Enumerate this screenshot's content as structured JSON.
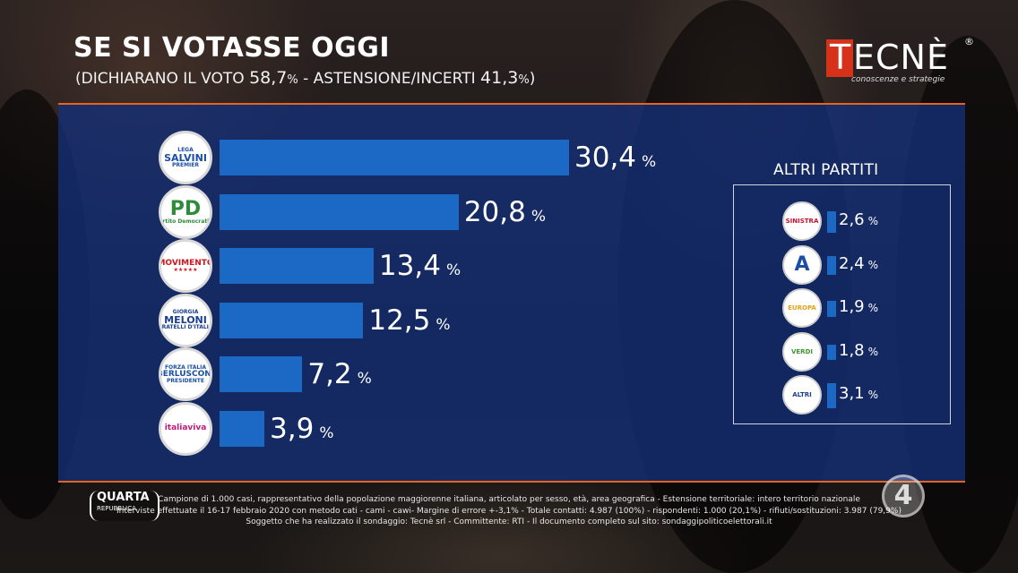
{
  "header": {
    "title": "SE SI VOTASSE OGGI",
    "subtitle_prefix": "(DICHIARANO IL VOTO ",
    "subtitle_voto": "58,7",
    "subtitle_mid": " - ASTENSIONE/INCERTI ",
    "subtitle_astensione": "41,3",
    "subtitle_suffix": ")",
    "pct": "%"
  },
  "brand": {
    "logo_letters": [
      "T",
      "ECNÈ"
    ],
    "registered": "®",
    "tagline": "conoscenze e strategie",
    "accent": "#d6311a"
  },
  "chart_data": {
    "type": "bar",
    "orientation": "horizontal",
    "categories": [
      "Lega Salvini Premier",
      "Partito Democratico",
      "Movimento 5 Stelle",
      "Fratelli d'Italia Giorgia Meloni",
      "Forza Italia Berlusconi Presidente",
      "Italia Viva"
    ],
    "values": [
      30.4,
      20.8,
      13.4,
      12.5,
      7.2,
      3.9
    ],
    "labels": [
      "30,4",
      "20,8",
      "13,4",
      "12,5",
      "7,2",
      "3,9"
    ],
    "unit": "%",
    "bar_color": "#1b69c4",
    "logo_texts": [
      {
        "top": "LEGA",
        "main": "SALVINI",
        "sub": "PREMIER"
      },
      {
        "main": "PD",
        "sub": "Partito Democratico"
      },
      {
        "main": "MOVIMENTO",
        "sub": "★★★★★"
      },
      {
        "top": "GIORGIA",
        "main": "MELONI",
        "sub": "FRATELLI D'ITALIA"
      },
      {
        "top": "FORZA ITALIA",
        "main": "BERLUSCONI",
        "sub": "PRESIDENTE"
      },
      {
        "main": "italiaviva"
      }
    ]
  },
  "others": {
    "title": "ALTRI PARTITI",
    "unit": "%",
    "items": [
      {
        "value": 2.6,
        "label": "2,6",
        "logo_text": "SINISTRA",
        "logo_color": "#c8102e"
      },
      {
        "value": 2.4,
        "label": "2,4",
        "logo_text": "A",
        "logo_color": "#1a4fa3"
      },
      {
        "value": 1.9,
        "label": "1,9",
        "logo_text": "EUROPA",
        "logo_color": "#e3a21a"
      },
      {
        "value": 1.8,
        "label": "1,8",
        "logo_text": "VERDI",
        "logo_color": "#3a9a2e"
      },
      {
        "value": 3.1,
        "label": "3,1",
        "logo_text": "ALTRI",
        "logo_color": "#1a3f8f"
      }
    ]
  },
  "footer": {
    "show_name": "QUARTA",
    "show_sub": "REPUBBLICA",
    "line1": "Campione di 1.000 casi, rappresentativo della popolazione maggiorenne italiana, articolato per sesso, età, area geografica - Estensione territoriale: intero territorio nazionale",
    "line2": "Interviste effettuate il 16-17 febbraio 2020 con metodo cati - cami - cawi- Margine di errore +-3,1% - Totale contatti: 4.987 (100%) - rispondenti: 1.000 (20,1%) - rifiuti/sostituzioni: 3.987 (79,9%)",
    "line3": "Soggetto che ha realizzato il sondaggio: Tecnè srl - Committente: RTI - Il documento completo sul sito: sondaggipoliticoelettorali.it",
    "channel": "4"
  }
}
